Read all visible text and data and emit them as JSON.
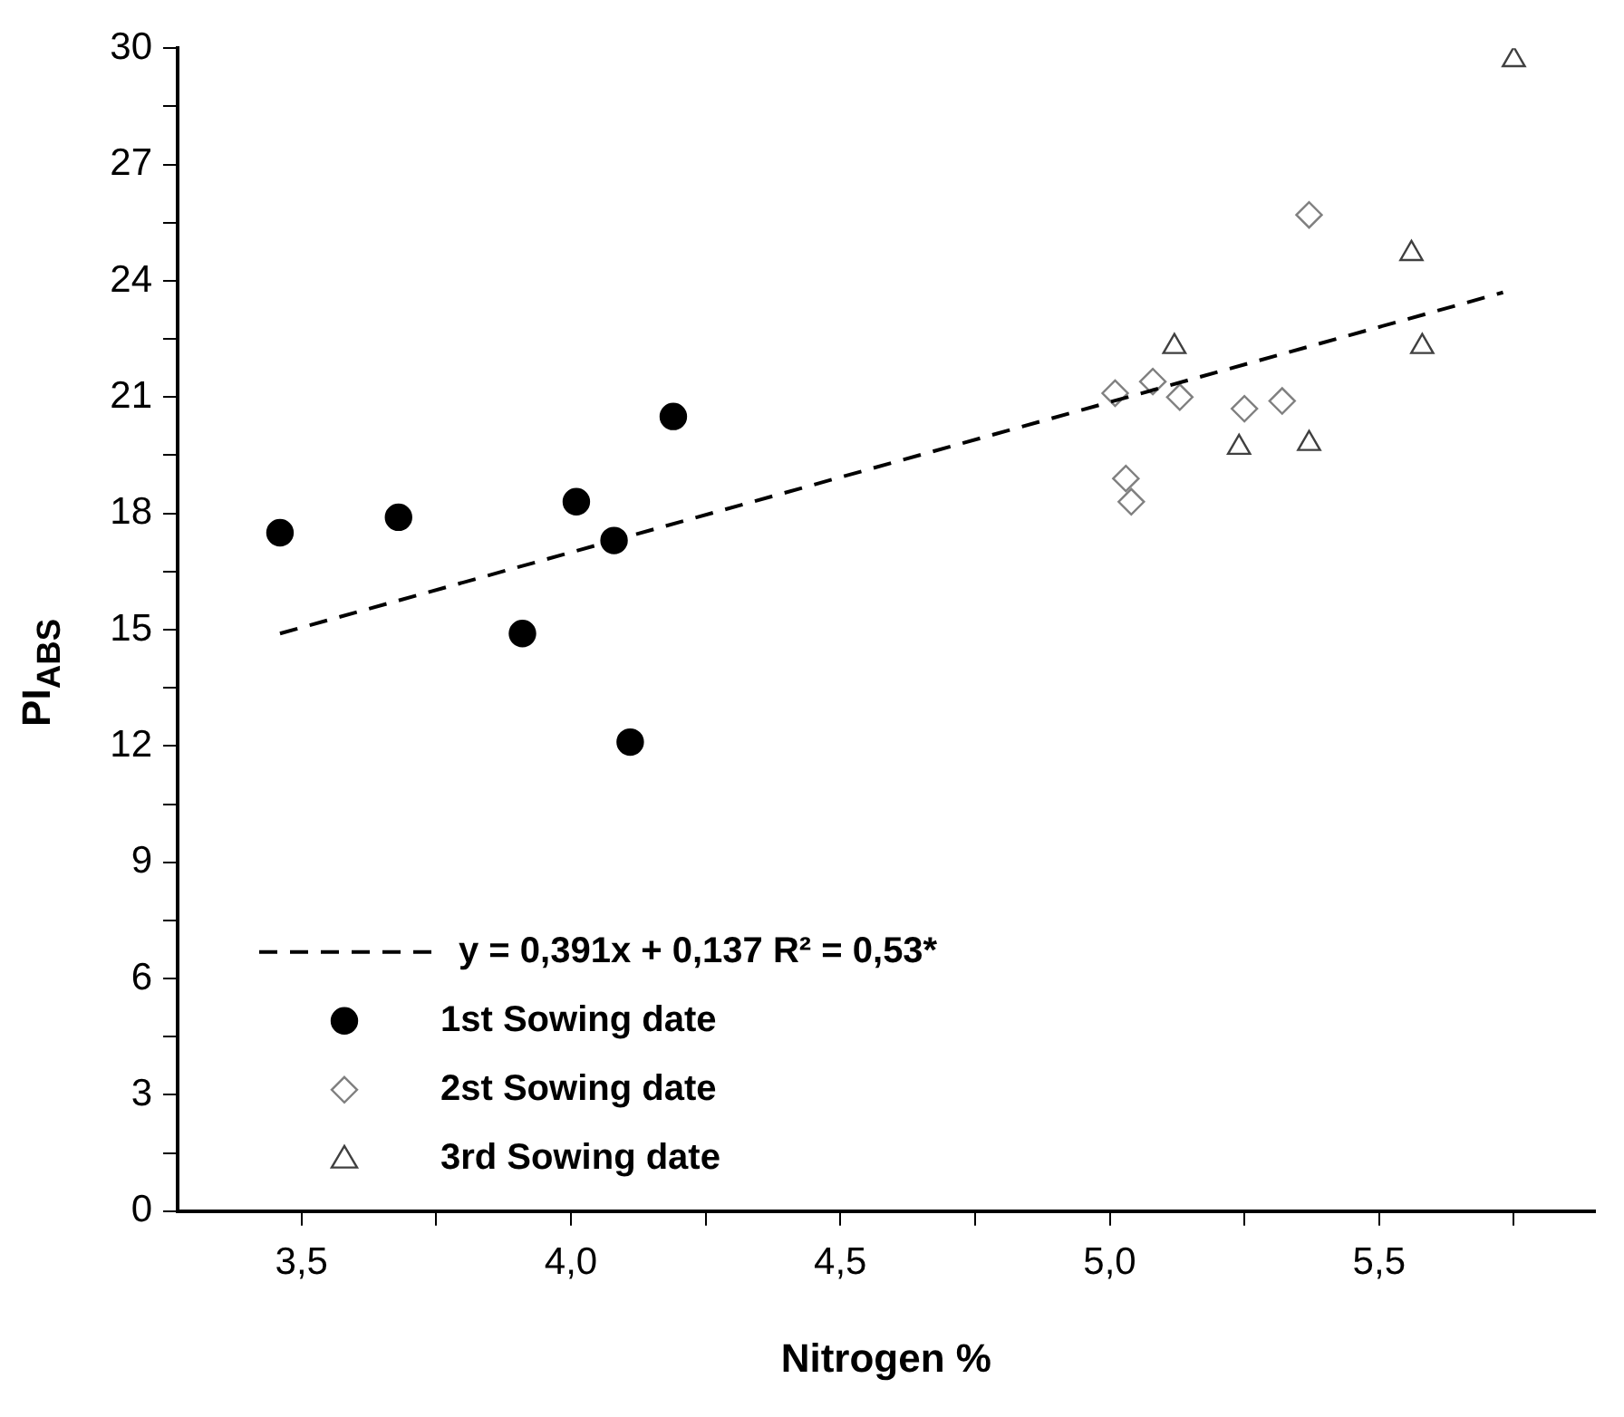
{
  "chart_data": {
    "type": "scatter",
    "xlabel": "Nitrogen %",
    "ylabel": "PI$_{ABS}$",
    "xlim": [
      3.27,
      5.9
    ],
    "xticks": [
      {
        "value": 3.5,
        "label": "3,5"
      },
      {
        "value": 3.75,
        "label": null
      },
      {
        "value": 4.0,
        "label": "4,0"
      },
      {
        "value": 4.25,
        "label": null
      },
      {
        "value": 4.5,
        "label": "4,5"
      },
      {
        "value": 4.75,
        "label": null
      },
      {
        "value": 5.0,
        "label": "5,0"
      },
      {
        "value": 5.25,
        "label": null
      },
      {
        "value": 5.5,
        "label": "5,5"
      },
      {
        "value": 5.75,
        "label": null
      }
    ],
    "ylim": [
      0,
      30
    ],
    "yticks": [
      0,
      {
        "value": 1.5,
        "label": null
      },
      3,
      {
        "value": 4.5,
        "label": null
      },
      6,
      {
        "value": 7.5,
        "label": null
      },
      9,
      {
        "value": 10.5,
        "label": null
      },
      12,
      {
        "value": 13.5,
        "label": null
      },
      15,
      {
        "value": 16.5,
        "label": null
      },
      18,
      {
        "value": 19.5,
        "label": null
      },
      21,
      {
        "value": 22.5,
        "label": null
      },
      24,
      {
        "value": 25.5,
        "label": null
      },
      27,
      {
        "value": 28.5,
        "label": null
      },
      30
    ],
    "grid": false,
    "legend": "bottom left",
    "series": [
      {
        "type": "line",
        "name": "y = 0,391x + 0,137 R² = 0,53*",
        "color": "#000000",
        "line_style": "dashed",
        "marker": "none",
        "x": [
          3.46,
          5.73
        ],
        "values": [
          14.9,
          23.7
        ]
      },
      {
        "name": "1st Sowing date",
        "color": "#000000",
        "marker": "circle",
        "x": [
          3.46,
          3.68,
          3.91,
          4.01,
          4.08,
          4.11,
          4.19
        ],
        "values": [
          17.5,
          17.9,
          14.9,
          18.3,
          17.3,
          12.1,
          20.5
        ]
      },
      {
        "name": "2st Sowing date",
        "color": "#808080",
        "marker": "diamond",
        "x": [
          5.37,
          5.01,
          5.08,
          5.13,
          5.03,
          5.04,
          5.25,
          5.32
        ],
        "values": [
          25.7,
          21.1,
          21.4,
          21.0,
          18.9,
          18.3,
          20.7,
          20.9
        ]
      },
      {
        "name": "3rd Sowing date",
        "color": "#404040",
        "marker": "triangle",
        "x": [
          5.75,
          5.56,
          5.58,
          5.12,
          5.24,
          5.37
        ],
        "values": [
          29.7,
          24.7,
          22.3,
          22.3,
          19.7,
          19.8
        ]
      }
    ]
  }
}
